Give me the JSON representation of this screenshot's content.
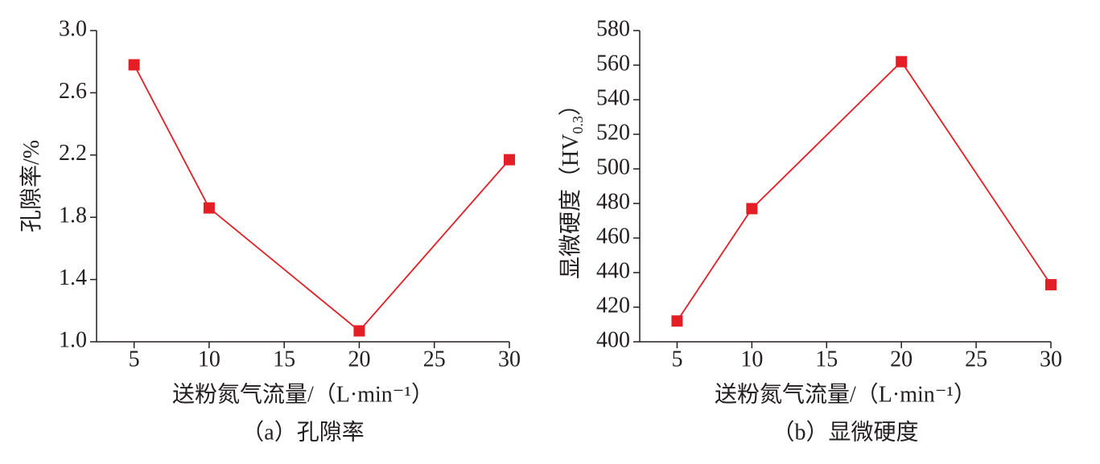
{
  "chart_data": [
    {
      "type": "line",
      "caption": "（a）孔隙率",
      "xlabel": "送粉氮气流量/（L·min⁻¹）",
      "ylabel": "孔隙率/%",
      "x": [
        5,
        10,
        20,
        30
      ],
      "series": [
        {
          "color": "#e31e24",
          "values": [
            2.78,
            1.86,
            1.07,
            2.17
          ]
        }
      ],
      "xlim": [
        2.5,
        30
      ],
      "xticks": [
        5,
        10,
        15,
        20,
        25,
        30
      ],
      "ylim": [
        1.0,
        3.0
      ],
      "yticks": [
        {
          "value": 1.0,
          "label": "1.0"
        },
        1.4,
        1.8,
        2.2,
        2.6,
        {
          "value": 3.0,
          "label": "3.0"
        }
      ]
    },
    {
      "type": "line",
      "caption": "（b）显微硬度",
      "xlabel": "送粉氮气流量/（L·min⁻¹）",
      "ylabel": "显微硬度（HV",
      "ylabel_sub": "0.3",
      "ylabel_end": "）",
      "x": [
        5,
        10,
        20,
        30
      ],
      "series": [
        {
          "color": "#e31e24",
          "values": [
            412,
            477,
            562,
            433
          ]
        }
      ],
      "xlim": [
        2.5,
        30
      ],
      "xticks": [
        5,
        10,
        15,
        20,
        25,
        30
      ],
      "ylim": [
        400,
        580
      ],
      "yticks": [
        400,
        420,
        440,
        460,
        480,
        500,
        520,
        540,
        560,
        580
      ]
    }
  ]
}
